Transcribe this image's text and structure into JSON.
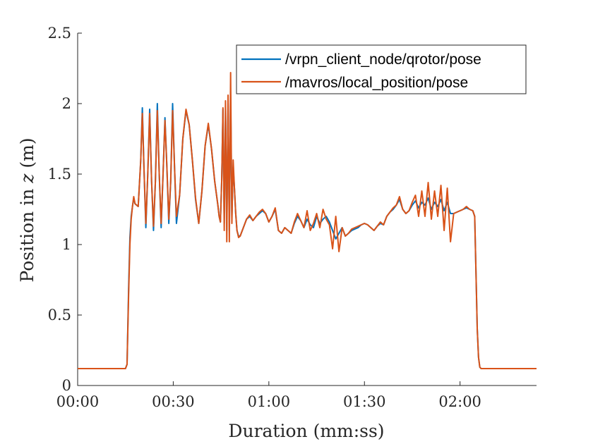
{
  "chart_data": {
    "type": "line",
    "title": "",
    "xlabel": "Duration (mm:ss)",
    "ylabel_prefix": "Position in ",
    "ylabel_var": "z",
    "ylabel_suffix": " (m)",
    "xlim": [
      0,
      144
    ],
    "ylim": [
      0,
      2.5
    ],
    "x_ticks": [
      0,
      30,
      60,
      90,
      120
    ],
    "x_tick_labels": [
      "00:00",
      "00:30",
      "01:00",
      "01:30",
      "02:00"
    ],
    "y_ticks": [
      0,
      0.5,
      1,
      1.5,
      2,
      2.5
    ],
    "y_tick_labels": [
      "0",
      "0.5",
      "1",
      "1.5",
      "2",
      "2.5"
    ],
    "grid": false,
    "legend_position": "top-right",
    "series": [
      {
        "name": "/vrpn_client_node/qrotor/pose",
        "color": "#0072BD",
        "x": [
          0,
          5,
          10,
          15,
          15.5,
          16,
          16.4,
          16.8,
          17.2,
          17.6,
          18,
          19,
          19.8,
          20.3,
          20.8,
          21.4,
          22,
          22.6,
          23.2,
          23.8,
          24.4,
          25,
          25.6,
          26.2,
          26.8,
          27.4,
          28,
          28.6,
          29.2,
          29.8,
          30.4,
          31,
          32,
          33,
          34,
          35,
          36,
          37,
          38,
          39,
          40,
          41,
          42,
          43,
          44,
          44.4,
          44.8,
          45.2,
          45.6,
          46,
          46.4,
          46.8,
          47.2,
          47.6,
          48,
          48.4,
          48.8,
          49.2,
          49.6,
          50,
          50.5,
          51,
          52,
          53,
          54,
          55,
          56,
          57,
          58,
          59,
          60,
          61,
          62,
          63,
          64,
          65,
          66,
          67,
          68,
          69,
          70,
          71,
          72,
          73,
          74,
          75,
          76,
          77,
          78,
          79,
          80,
          81,
          82,
          83,
          84,
          85,
          86,
          87,
          88,
          89,
          90,
          91,
          92,
          93,
          94,
          95,
          96,
          97,
          98,
          99,
          100,
          101,
          102,
          103,
          104,
          105,
          106,
          107,
          108,
          109,
          110,
          111,
          112,
          113,
          114,
          115,
          116,
          117,
          118,
          119,
          120,
          121,
          122,
          123,
          124,
          124.6,
          125,
          125.4,
          125.8,
          126.2,
          126.6,
          127,
          130,
          135,
          140,
          144
        ],
        "y": [
          0.12,
          0.12,
          0.12,
          0.12,
          0.15,
          0.7,
          1.05,
          1.2,
          1.27,
          1.33,
          1.29,
          1.27,
          1.6,
          1.97,
          1.55,
          1.12,
          1.5,
          1.96,
          1.45,
          1.1,
          1.45,
          2.0,
          1.5,
          1.12,
          1.5,
          1.9,
          1.55,
          1.15,
          1.45,
          2.0,
          1.55,
          1.15,
          1.35,
          1.75,
          1.95,
          1.85,
          1.6,
          1.32,
          1.15,
          1.38,
          1.7,
          1.85,
          1.68,
          1.45,
          1.28,
          1.2,
          1.16,
          1.45,
          1.96,
          1.15,
          1.95,
          1.1,
          2.0,
          1.1,
          2.05,
          1.2,
          1.55,
          1.4,
          1.22,
          1.1,
          1.06,
          1.06,
          1.12,
          1.18,
          1.2,
          1.17,
          1.2,
          1.22,
          1.24,
          1.22,
          1.16,
          1.2,
          1.25,
          1.1,
          1.08,
          1.12,
          1.1,
          1.08,
          1.15,
          1.2,
          1.17,
          1.12,
          1.18,
          1.14,
          1.12,
          1.2,
          1.15,
          1.18,
          1.2,
          1.16,
          1.1,
          1.04,
          1.08,
          1.12,
          1.06,
          1.08,
          1.1,
          1.11,
          1.12,
          1.14,
          1.15,
          1.14,
          1.12,
          1.1,
          1.13,
          1.15,
          1.14,
          1.2,
          1.23,
          1.25,
          1.28,
          1.32,
          1.25,
          1.22,
          1.24,
          1.28,
          1.31,
          1.26,
          1.3,
          1.28,
          1.33,
          1.25,
          1.3,
          1.27,
          1.32,
          1.24,
          1.3,
          1.22,
          1.22,
          1.23,
          1.24,
          1.25,
          1.26,
          1.25,
          1.24,
          1.2,
          0.8,
          0.4,
          0.2,
          0.13,
          0.12,
          0.12,
          0.12,
          0.12,
          0.12,
          0.12
        ]
      },
      {
        "name": "/mavros/local_position/pose",
        "color": "#D95319",
        "x": [
          0,
          5,
          10,
          15,
          15.5,
          16,
          16.4,
          16.8,
          17.2,
          17.6,
          18,
          19,
          19.8,
          20.3,
          20.8,
          21.4,
          22,
          22.6,
          23.2,
          23.8,
          24.4,
          25,
          25.6,
          26.2,
          26.8,
          27.4,
          28,
          28.6,
          29.2,
          29.8,
          30.4,
          31,
          32,
          33,
          34,
          35,
          36,
          37,
          38,
          39,
          40,
          41,
          42,
          43,
          44,
          44.4,
          44.8,
          45.2,
          45.6,
          46,
          46.4,
          46.8,
          47.2,
          47.6,
          48,
          48.4,
          48.8,
          49.2,
          49.6,
          50,
          50.5,
          51,
          52,
          53,
          54,
          55,
          56,
          57,
          58,
          59,
          60,
          61,
          62,
          63,
          64,
          65,
          66,
          67,
          68,
          69,
          70,
          71,
          72,
          73,
          74,
          75,
          76,
          77,
          78,
          79,
          80,
          81,
          82,
          83,
          84,
          85,
          86,
          87,
          88,
          89,
          90,
          91,
          92,
          93,
          94,
          95,
          96,
          97,
          98,
          99,
          100,
          101,
          102,
          103,
          104,
          105,
          106,
          107,
          108,
          109,
          110,
          111,
          112,
          113,
          114,
          115,
          116,
          117,
          118,
          119,
          120,
          121,
          122,
          123,
          124,
          124.6,
          125,
          125.4,
          125.8,
          126.2,
          126.6,
          127,
          130,
          135,
          140,
          144
        ],
        "y": [
          0.12,
          0.12,
          0.12,
          0.12,
          0.15,
          0.65,
          1.0,
          1.18,
          1.27,
          1.34,
          1.29,
          1.27,
          1.6,
          1.93,
          1.55,
          1.15,
          1.5,
          1.93,
          1.45,
          1.13,
          1.45,
          1.95,
          1.5,
          1.15,
          1.5,
          1.88,
          1.55,
          1.18,
          1.45,
          1.95,
          1.55,
          1.2,
          1.35,
          1.75,
          1.96,
          1.85,
          1.6,
          1.33,
          1.15,
          1.38,
          1.7,
          1.86,
          1.68,
          1.45,
          1.28,
          1.2,
          1.16,
          1.45,
          1.97,
          1.1,
          2.02,
          1.02,
          2.06,
          1.02,
          2.22,
          1.15,
          1.6,
          1.4,
          1.22,
          1.1,
          1.05,
          1.06,
          1.12,
          1.18,
          1.21,
          1.17,
          1.2,
          1.23,
          1.25,
          1.22,
          1.16,
          1.2,
          1.26,
          1.1,
          1.08,
          1.12,
          1.1,
          1.08,
          1.16,
          1.22,
          1.17,
          1.12,
          1.24,
          1.1,
          1.15,
          1.22,
          1.12,
          1.25,
          1.18,
          1.14,
          0.97,
          1.2,
          0.95,
          1.12,
          1.06,
          1.08,
          1.11,
          1.12,
          1.13,
          1.14,
          1.15,
          1.14,
          1.12,
          1.1,
          1.13,
          1.16,
          1.14,
          1.2,
          1.23,
          1.26,
          1.28,
          1.34,
          1.25,
          1.22,
          1.24,
          1.3,
          1.35,
          1.2,
          1.38,
          1.2,
          1.44,
          1.18,
          1.38,
          1.2,
          1.42,
          1.1,
          1.4,
          1.02,
          1.22,
          1.23,
          1.24,
          1.25,
          1.27,
          1.25,
          1.24,
          1.2,
          0.8,
          0.4,
          0.2,
          0.13,
          0.12,
          0.12,
          0.12,
          0.12,
          0.12,
          0.12
        ]
      }
    ]
  }
}
